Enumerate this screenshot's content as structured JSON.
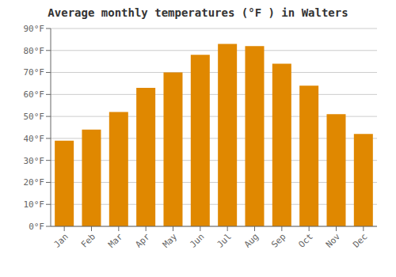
{
  "chart_data": {
    "type": "bar",
    "title": "Average monthly temperatures (°F ) in Walters",
    "categories": [
      "Jan",
      "Feb",
      "Mar",
      "Apr",
      "May",
      "Jun",
      "Jul",
      "Aug",
      "Sep",
      "Oct",
      "Nov",
      "Dec"
    ],
    "values": [
      39,
      44,
      52,
      63,
      70,
      78,
      83,
      82,
      74,
      64,
      51,
      42
    ],
    "color": "#E08800",
    "ylim": [
      0,
      90
    ],
    "yticks": [
      {
        "value": 0,
        "label": "0°F"
      },
      {
        "value": 10,
        "label": "10°F"
      },
      {
        "value": 20,
        "label": "20°F"
      },
      {
        "value": 30,
        "label": "30°F"
      },
      {
        "value": 40,
        "label": "40°F"
      },
      {
        "value": 50,
        "label": "50°F"
      },
      {
        "value": 60,
        "label": "60°F"
      },
      {
        "value": 70,
        "label": "70°F"
      },
      {
        "value": 80,
        "label": "80°F"
      },
      {
        "value": 90,
        "label": "90°F"
      }
    ],
    "grid": true
  }
}
